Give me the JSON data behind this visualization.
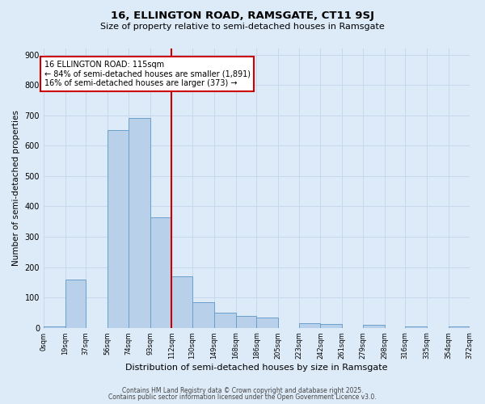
{
  "title": "16, ELLINGTON ROAD, RAMSGATE, CT11 9SJ",
  "subtitle": "Size of property relative to semi-detached houses in Ramsgate",
  "xlabel": "Distribution of semi-detached houses by size in Ramsgate",
  "ylabel": "Number of semi-detached properties",
  "bin_edges": [
    0,
    19,
    37,
    56,
    74,
    93,
    112,
    130,
    149,
    168,
    186,
    205,
    223,
    242,
    261,
    279,
    298,
    316,
    335,
    354,
    372
  ],
  "bar_heights": [
    5,
    160,
    0,
    650,
    690,
    365,
    170,
    85,
    50,
    40,
    33,
    0,
    15,
    12,
    0,
    10,
    0,
    5,
    0,
    5
  ],
  "bar_color": "#b8d0ea",
  "bar_edge_color": "#6aa0cc",
  "vline_x": 112,
  "vline_color": "#cc0000",
  "annotation_text": "16 ELLINGTON ROAD: 115sqm\n← 84% of semi-detached houses are smaller (1,891)\n16% of semi-detached houses are larger (373) →",
  "annotation_box_facecolor": "#ffffff",
  "annotation_box_edgecolor": "#cc0000",
  "ylim": [
    0,
    920
  ],
  "yticks": [
    0,
    100,
    200,
    300,
    400,
    500,
    600,
    700,
    800,
    900
  ],
  "xtick_labels": [
    "0sqm",
    "19sqm",
    "37sqm",
    "56sqm",
    "74sqm",
    "93sqm",
    "112sqm",
    "130sqm",
    "149sqm",
    "168sqm",
    "186sqm",
    "205sqm",
    "223sqm",
    "242sqm",
    "261sqm",
    "279sqm",
    "298sqm",
    "316sqm",
    "335sqm",
    "354sqm",
    "372sqm"
  ],
  "grid_color": "#c8d8ec",
  "bg_color": "#ddeaf7",
  "footer1": "Contains HM Land Registry data © Crown copyright and database right 2025.",
  "footer2": "Contains public sector information licensed under the Open Government Licence v3.0."
}
